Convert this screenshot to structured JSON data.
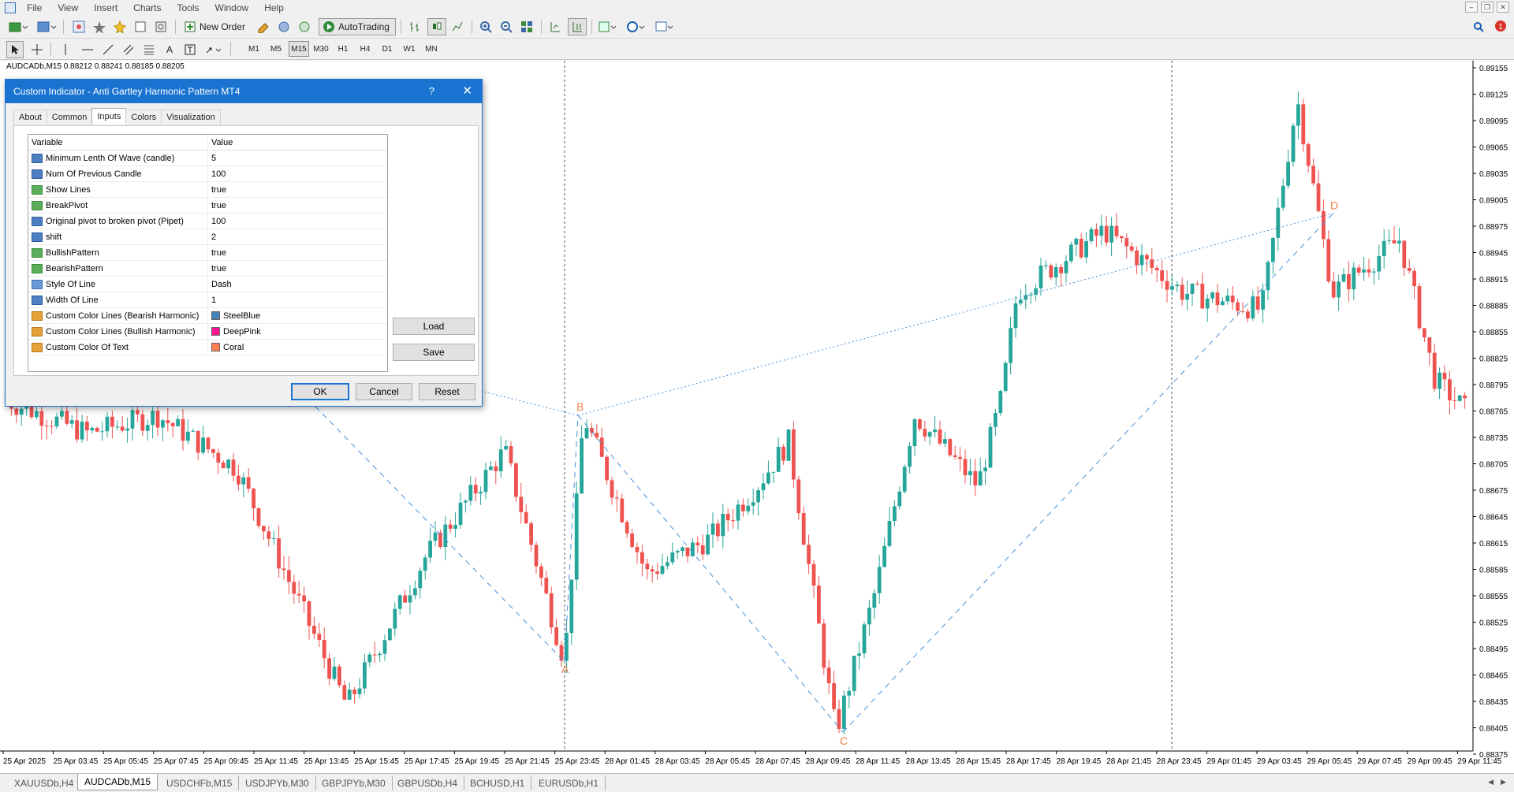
{
  "menu": {
    "items": [
      "File",
      "View",
      "Insert",
      "Charts",
      "Tools",
      "Window",
      "Help"
    ]
  },
  "toolbar": {
    "new_order": "New Order",
    "autotrading": "AutoTrading"
  },
  "timeframes": [
    "M1",
    "M5",
    "M15",
    "M30",
    "H1",
    "H4",
    "D1",
    "W1",
    "MN"
  ],
  "active_timeframe": "M15",
  "chart": {
    "title": "AUDCADb,M15  0.88212 0.88241 0.88185 0.88205",
    "price_labels": [
      "0.89155",
      "0.89125",
      "0.89095",
      "0.89065",
      "0.89035",
      "0.89005",
      "0.88975",
      "0.88945",
      "0.88915",
      "0.88885",
      "0.88855",
      "0.88825",
      "0.88795",
      "0.88765",
      "0.88735",
      "0.88705",
      "0.88675",
      "0.88645",
      "0.88615",
      "0.88585",
      "0.88555",
      "0.88525",
      "0.88495",
      "0.88465",
      "0.88435",
      "0.88405",
      "0.88375"
    ],
    "time_labels": [
      "25 Apr 2025",
      "25 Apr 03:45",
      "25 Apr 05:45",
      "25 Apr 07:45",
      "25 Apr 09:45",
      "25 Apr 11:45",
      "25 Apr 13:45",
      "25 Apr 15:45",
      "25 Apr 17:45",
      "25 Apr 19:45",
      "25 Apr 21:45",
      "25 Apr 23:45",
      "28 Apr 01:45",
      "28 Apr 03:45",
      "28 Apr 05:45",
      "28 Apr 07:45",
      "28 Apr 09:45",
      "28 Apr 11:45",
      "28 Apr 13:45",
      "28 Apr 15:45",
      "28 Apr 17:45",
      "28 Apr 19:45",
      "28 Apr 21:45",
      "28 Apr 23:45",
      "29 Apr 01:45",
      "29 Apr 03:45",
      "29 Apr 05:45",
      "29 Apr 07:45",
      "29 Apr 09:45",
      "29 Apr 11:45"
    ],
    "pattern_points": [
      {
        "label": "A",
        "price": 0.8848
      },
      {
        "label": "B",
        "price": 0.8876
      },
      {
        "label": "C",
        "price": 0.884
      },
      {
        "label": "D",
        "price": 0.8899
      }
    ],
    "bull_color": "#26a69a",
    "bear_color": "#ef5350",
    "pattern_color": "#4a90d9",
    "label_color": "#f08050"
  },
  "chart_tabs": [
    "XAUUSDb,H4",
    "AUDCADb,M15",
    "USDCHFb,M15",
    "USDJPYb,M30",
    "GBPJPYb,M30",
    "GBPUSDb,H4",
    "BCHUSD,H1",
    "EURUSDb,H1"
  ],
  "active_chart_tab": "AUDCADb,M15",
  "dialog": {
    "title": "Custom Indicator - Anti Gartley Harmonic Pattern MT4",
    "help": "?",
    "tabs": [
      "About",
      "Common",
      "Inputs",
      "Colors",
      "Visualization"
    ],
    "active_tab": "Inputs",
    "grid_headers": {
      "variable": "Variable",
      "value": "Value"
    },
    "inputs": [
      {
        "variable": "Minimum Lenth Of Wave (candle)",
        "value": "5",
        "type": "num"
      },
      {
        "variable": "Num Of Previous Candle",
        "value": "100",
        "type": "num"
      },
      {
        "variable": "Show Lines",
        "value": "true",
        "type": "bool"
      },
      {
        "variable": "BreakPivot",
        "value": "true",
        "type": "bool"
      },
      {
        "variable": "Original pivot to broken pivot (Pipet)",
        "value": "100",
        "type": "num"
      },
      {
        "variable": "shift",
        "value": "2",
        "type": "num"
      },
      {
        "variable": "BullishPattern",
        "value": "true",
        "type": "bool"
      },
      {
        "variable": "BearishPattern",
        "value": "true",
        "type": "bool"
      },
      {
        "variable": "Style Of Line",
        "value": "Dash",
        "type": "enum"
      },
      {
        "variable": "Width Of Line",
        "value": "1",
        "type": "num"
      },
      {
        "variable": "Custom Color Lines (Bearish Harmonic)",
        "value": "SteelBlue",
        "type": "color",
        "color": "#4682b4"
      },
      {
        "variable": "Custom Color Lines (Bullish Harmonic)",
        "value": "DeepPink",
        "type": "color",
        "color": "#ff1493"
      },
      {
        "variable": "Custom Color Of Text",
        "value": "Coral",
        "type": "color",
        "color": "#ff7f50"
      }
    ],
    "buttons": {
      "load": "Load",
      "save": "Save",
      "ok": "OK",
      "cancel": "Cancel",
      "reset": "Reset"
    }
  }
}
